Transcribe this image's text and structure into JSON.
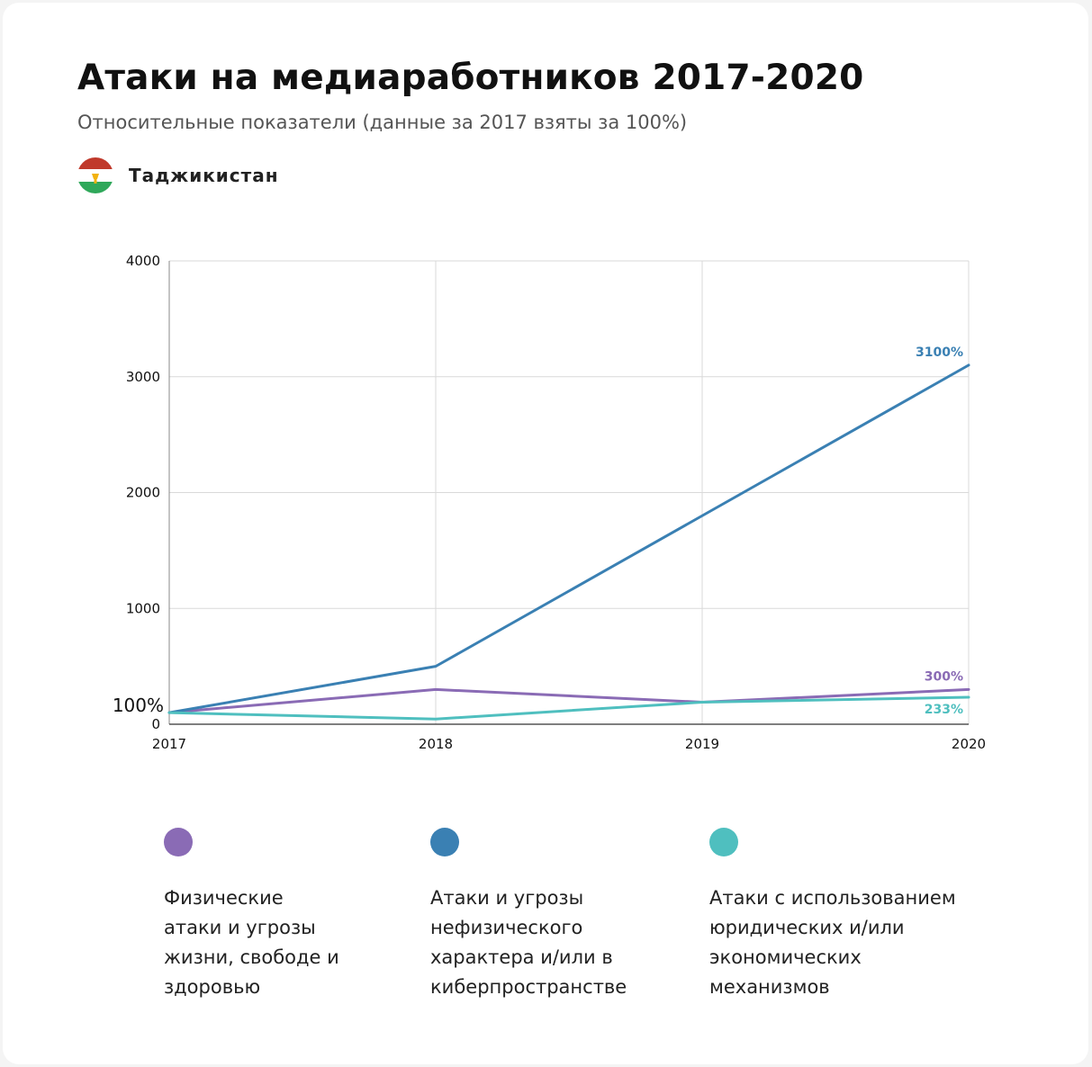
{
  "title": "Атаки на медиаработников 2017-2020",
  "subtitle": "Относительные показатели (данные за 2017 взяты за 100%)",
  "country": "Таджикистан",
  "colors": {
    "physical": "#8a6bb5",
    "nonphysical": "#3a80b3",
    "legal": "#4fbfbf",
    "grid": "#d9d9d9"
  },
  "chart_data": {
    "type": "line",
    "x": [
      "2017",
      "2018",
      "2019",
      "2020"
    ],
    "ylim": [
      0,
      4000
    ],
    "yticks": [
      "0",
      "1000",
      "2000",
      "3000",
      "4000"
    ],
    "baseline_label": "100%",
    "baseline_value": 100,
    "grid": true,
    "legend_position": "bottom",
    "series": [
      {
        "key": "physical",
        "name": "Физические\nатаки и угрозы\nжизни, свободе и\nздоровью",
        "values": [
          100,
          300,
          190,
          300
        ],
        "end_label": "300%"
      },
      {
        "key": "nonphysical",
        "name": "Атаки и угрозы\nнефизического\nхарактера и/или в\nкиберпространстве",
        "values": [
          100,
          500,
          1800,
          3100
        ],
        "end_label": "3100%"
      },
      {
        "key": "legal",
        "name": "Атаки с использованием\nюридических и/или\nэкономических\nмеханизмов",
        "values": [
          100,
          45,
          190,
          233
        ],
        "end_label": "233%"
      }
    ]
  }
}
